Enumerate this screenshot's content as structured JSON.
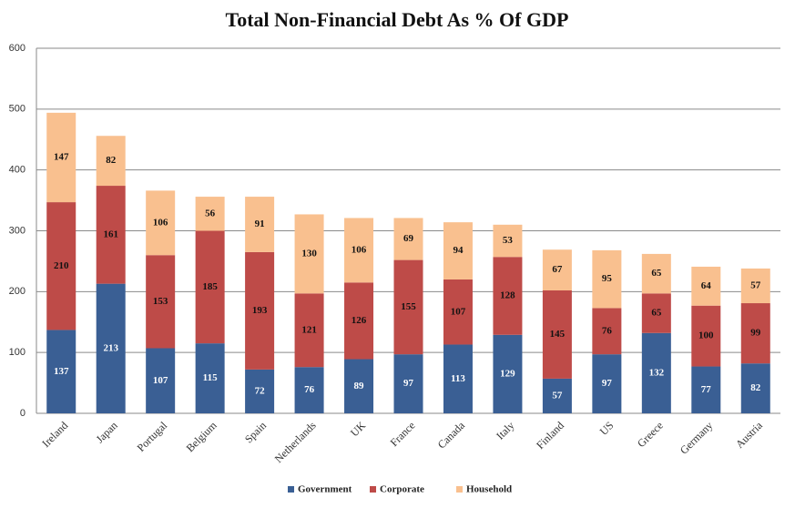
{
  "chart_data": {
    "type": "stacked-bar",
    "title": "Total Non-Financial Debt As % Of  GDP",
    "categories": [
      "Ireland",
      "Japan",
      "Portugal",
      "Belgium",
      "Spain",
      "Netherlands",
      "UK",
      "France",
      "Canada",
      "Italy",
      "Finland",
      "US",
      "Greece",
      "Germany",
      "Austria"
    ],
    "series": [
      {
        "name": "Government",
        "color": "#3a5f94",
        "values": [
          137,
          213,
          107,
          115,
          72,
          76,
          89,
          97,
          113,
          129,
          57,
          97,
          132,
          77,
          82
        ]
      },
      {
        "name": "Corporate",
        "color": "#be4b48",
        "values": [
          210,
          161,
          153,
          185,
          193,
          121,
          126,
          155,
          107,
          128,
          145,
          76,
          65,
          100,
          99
        ]
      },
      {
        "name": "Household",
        "color": "#f9c08f",
        "values": [
          147,
          82,
          106,
          56,
          91,
          130,
          106,
          69,
          94,
          53,
          67,
          95,
          65,
          64,
          57
        ]
      }
    ],
    "ylim": [
      0,
      600
    ],
    "yticks": [
      0,
      100,
      200,
      300,
      400,
      500,
      600
    ],
    "grid": true,
    "legend": "bottom"
  }
}
